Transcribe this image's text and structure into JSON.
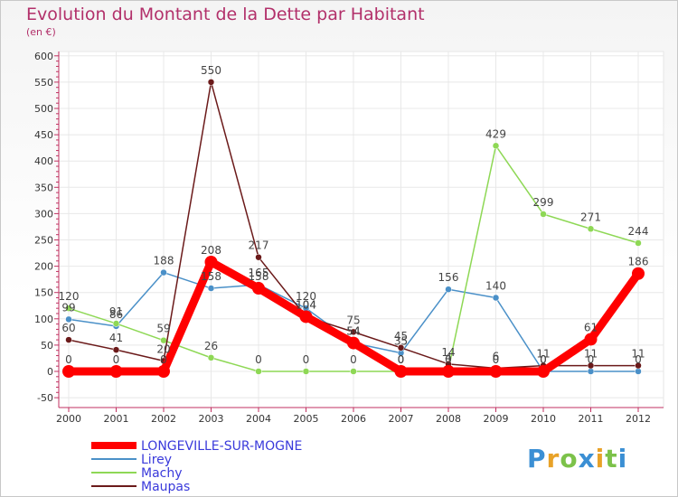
{
  "title": "Evolution du Montant de la Dette par Habitant",
  "subtitle": "(en €)",
  "logo_text": "Proxiti",
  "chart_data": {
    "type": "line",
    "x": [
      "2000",
      "2001",
      "2002",
      "2003",
      "2004",
      "2005",
      "2006",
      "2007",
      "2008",
      "2009",
      "2010",
      "2011",
      "2012"
    ],
    "yticks": [
      -50,
      0,
      50,
      100,
      150,
      200,
      250,
      300,
      350,
      400,
      450,
      500,
      550,
      600
    ],
    "ylim": [
      -50,
      600
    ],
    "legend_position": "bottom-left",
    "series": [
      {
        "name": "LONGEVILLE-SUR-MOGNE",
        "color": "#ff0000",
        "values": [
          0,
          0,
          0,
          208,
          158,
          104,
          54,
          0,
          0,
          0,
          0,
          61,
          186
        ]
      },
      {
        "name": "Lirey",
        "color": "#4a90c8",
        "values": [
          99,
          86,
          188,
          158,
          165,
          120,
          54,
          35,
          156,
          140,
          0,
          0,
          0
        ]
      },
      {
        "name": "Machy",
        "color": "#8ed855",
        "values": [
          120,
          91,
          59,
          26,
          0,
          0,
          0,
          0,
          4,
          429,
          299,
          271,
          244
        ]
      },
      {
        "name": "Maupas",
        "color": "#6b1a1a",
        "values": [
          60,
          41,
          20,
          550,
          217,
          104,
          75,
          45,
          14,
          6,
          11,
          11,
          11
        ]
      }
    ]
  }
}
